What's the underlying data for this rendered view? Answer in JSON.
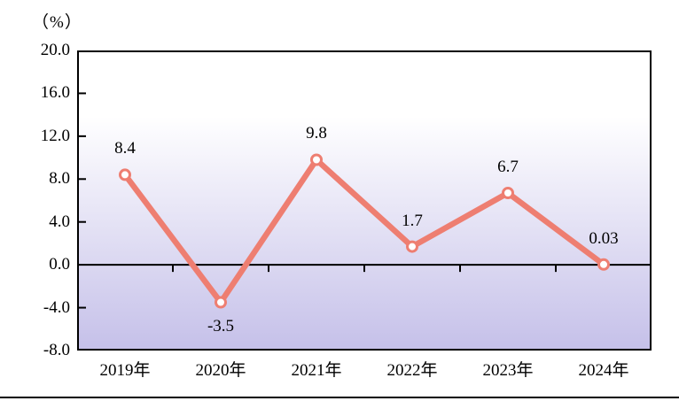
{
  "chart_data": {
    "type": "line",
    "title": "",
    "unit_label": "（%）",
    "categories": [
      "2019年",
      "2020年",
      "2021年",
      "2022年",
      "2023年",
      "2024年"
    ],
    "values": [
      8.4,
      -3.5,
      9.8,
      1.7,
      6.7,
      0.03
    ],
    "value_labels": [
      "8.4",
      "-3.5",
      "9.8",
      "1.7",
      "6.7",
      "0.03"
    ],
    "ylim": [
      -8.0,
      20.0
    ],
    "ytick_step": 4.0,
    "yticks": [
      "20.0",
      "16.0",
      "12.0",
      "8.0",
      "4.0",
      "0.0",
      "-4.0",
      "-8.0"
    ],
    "grid": false,
    "legend": "none",
    "colors": {
      "line": "#ee7e71",
      "marker_fill": "#ffffff",
      "axis": "#000000",
      "text": "#000000",
      "plot_gradient_top": "#ffffff",
      "plot_gradient_bottom": "#c5c0e9"
    }
  }
}
